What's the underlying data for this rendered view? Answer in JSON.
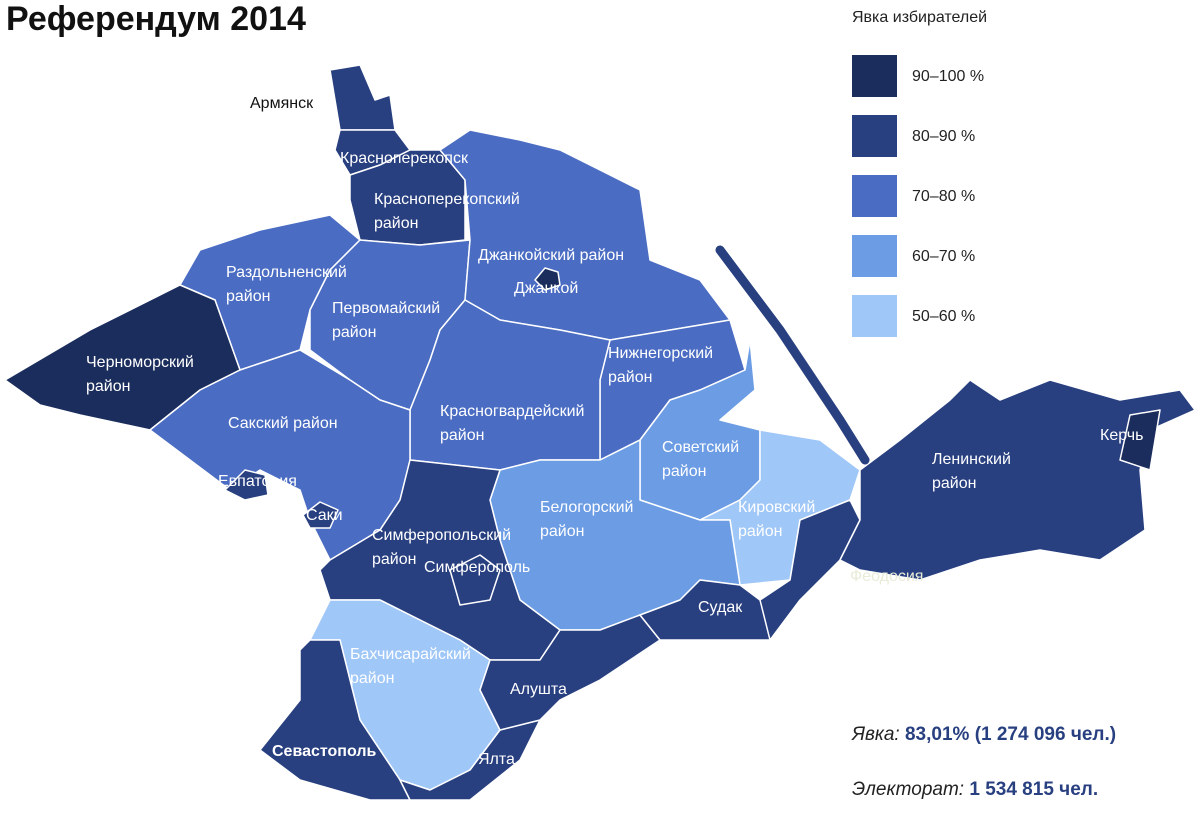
{
  "title": "Референдум 2014",
  "legend": {
    "title": "Явка избирателей",
    "items": [
      {
        "label": "90–100 %",
        "color": "#1b2d5c"
      },
      {
        "label": "80–90 %",
        "color": "#283f80"
      },
      {
        "label": "70–80 %",
        "color": "#4a6cc2"
      },
      {
        "label": "60–70 %",
        "color": "#6b9ce4"
      },
      {
        "label": "50–60 %",
        "color": "#9fc7f8"
      }
    ]
  },
  "regions": [
    {
      "label": "Армянск",
      "color": "#283f80"
    },
    {
      "label": "Красноперекопск",
      "color": "#283f80"
    },
    {
      "label": "Красноперекопский район",
      "color": "#283f80"
    },
    {
      "label": "Раздольненский район",
      "color": "#4a6cc2"
    },
    {
      "label": "Черноморский район",
      "color": "#1b2d5c"
    },
    {
      "label": "Первомайский район",
      "color": "#4a6cc2"
    },
    {
      "label": "Джанкойский район",
      "color": "#4a6cc2"
    },
    {
      "label": "Джанкой",
      "color": "#1b2d5c"
    },
    {
      "label": "Нижнегорский район",
      "color": "#4a6cc2"
    },
    {
      "label": "Красногвардейский район",
      "color": "#4a6cc2"
    },
    {
      "label": "Сакский район",
      "color": "#4a6cc2"
    },
    {
      "label": "Евпатория",
      "color": "#283f80"
    },
    {
      "label": "Саки",
      "color": "#283f80"
    },
    {
      "label": "Советский район",
      "color": "#6b9ce4"
    },
    {
      "label": "Кировский район",
      "color": "#9fc7f8"
    },
    {
      "label": "Белогорский район",
      "color": "#6b9ce4"
    },
    {
      "label": "Симферопольский район",
      "color": "#283f80"
    },
    {
      "label": "Симферополь",
      "color": "#283f80"
    },
    {
      "label": "Бахчисарайский район",
      "color": "#9fc7f8"
    },
    {
      "label": "Севастополь",
      "color": "#283f80"
    },
    {
      "label": "Ялта",
      "color": "#283f80"
    },
    {
      "label": "Алушта",
      "color": "#283f80"
    },
    {
      "label": "Судак",
      "color": "#283f80"
    },
    {
      "label": "Феодосия",
      "color": "#283f80"
    },
    {
      "label": "Ленинский район",
      "color": "#283f80"
    },
    {
      "label": "Керчь",
      "color": "#1b2d5c"
    }
  ],
  "stats": [
    {
      "label": "Явка:",
      "value": "83,01% (1 274 096 чел.)"
    },
    {
      "label": "Электорат:",
      "value": "1 534 815 чел."
    }
  ]
}
